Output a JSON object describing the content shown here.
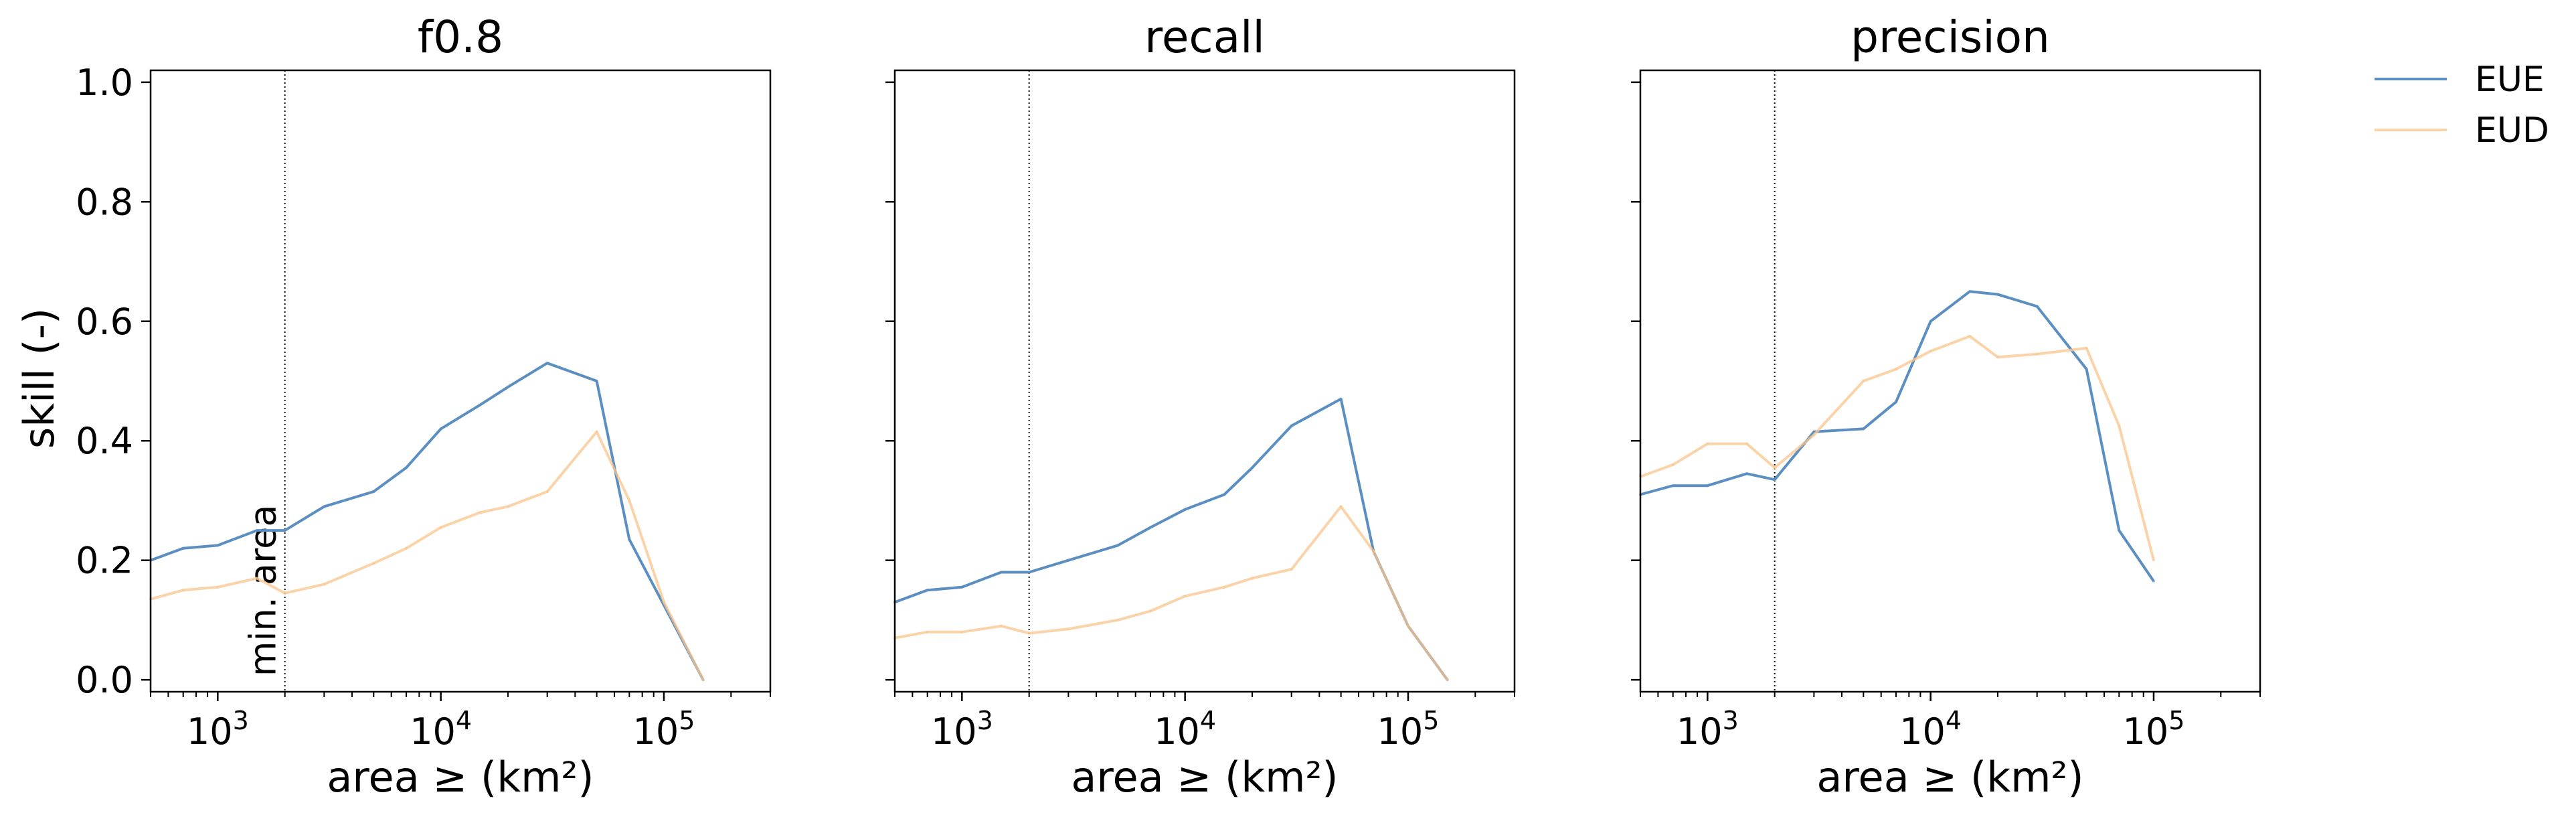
{
  "chart_data": {
    "type": "line",
    "ylabel": "skill (-)",
    "ylim": [
      -0.02,
      1.02
    ],
    "yticks": [
      0.0,
      0.2,
      0.4,
      0.6,
      0.8,
      1.0
    ],
    "ytick_labels": [
      "0.0",
      "0.2",
      "0.4",
      "0.6",
      "0.8",
      "1.0"
    ],
    "xscale": "log",
    "xlim": [
      500,
      300000
    ],
    "xticks": [
      1000,
      10000,
      100000
    ],
    "xtick_labels": [
      {
        "base": "10",
        "exp": "3"
      },
      {
        "base": "10",
        "exp": "4"
      },
      {
        "base": "10",
        "exp": "5"
      }
    ],
    "xlabel": "area ≥ (km²)",
    "min_area": 2000,
    "min_area_label": "min. area",
    "legend_position": "outside upper right",
    "series_styles": [
      {
        "name": "EUE",
        "color": "#5b8ec1",
        "opacity": 1.0
      },
      {
        "name": "EUD",
        "color": "#f9c48c",
        "opacity": 0.75
      }
    ],
    "panels": [
      {
        "title": "f0.8",
        "series": [
          {
            "name": "EUE",
            "x": [
              500,
              700,
              1000,
              1500,
              2000,
              3000,
              5000,
              7000,
              10000,
              15000,
              20000,
              30000,
              50000,
              70000,
              150000
            ],
            "y": [
              0.2,
              0.22,
              0.225,
              0.25,
              0.25,
              0.29,
              0.315,
              0.355,
              0.42,
              0.46,
              0.49,
              0.53,
              0.5,
              0.235,
              0.0
            ]
          },
          {
            "name": "EUD",
            "x": [
              500,
              700,
              1000,
              1500,
              2000,
              3000,
              5000,
              7000,
              10000,
              15000,
              20000,
              30000,
              50000,
              70000,
              100000,
              150000
            ],
            "y": [
              0.135,
              0.15,
              0.155,
              0.17,
              0.145,
              0.16,
              0.195,
              0.22,
              0.255,
              0.28,
              0.29,
              0.315,
              0.415,
              0.3,
              0.13,
              0.0
            ]
          }
        ]
      },
      {
        "title": "recall",
        "series": [
          {
            "name": "EUE",
            "x": [
              500,
              700,
              1000,
              1500,
              2000,
              3000,
              5000,
              7000,
              10000,
              15000,
              20000,
              30000,
              50000,
              70000,
              100000,
              150000
            ],
            "y": [
              0.13,
              0.15,
              0.155,
              0.18,
              0.18,
              0.2,
              0.225,
              0.255,
              0.285,
              0.31,
              0.355,
              0.425,
              0.47,
              0.215,
              0.09,
              0.0
            ]
          },
          {
            "name": "EUD",
            "x": [
              500,
              700,
              1000,
              1500,
              2000,
              3000,
              5000,
              7000,
              10000,
              15000,
              20000,
              30000,
              50000,
              70000,
              100000,
              150000
            ],
            "y": [
              0.07,
              0.08,
              0.08,
              0.09,
              0.078,
              0.085,
              0.1,
              0.115,
              0.14,
              0.155,
              0.17,
              0.185,
              0.29,
              0.215,
              0.09,
              0.0
            ]
          }
        ]
      },
      {
        "title": "precision",
        "series": [
          {
            "name": "EUE",
            "x": [
              500,
              700,
              1000,
              1500,
              2000,
              3000,
              5000,
              7000,
              10000,
              15000,
              20000,
              30000,
              50000,
              70000,
              100000
            ],
            "y": [
              0.31,
              0.325,
              0.325,
              0.345,
              0.335,
              0.415,
              0.42,
              0.465,
              0.6,
              0.65,
              0.645,
              0.625,
              0.52,
              0.25,
              0.165
            ]
          },
          {
            "name": "EUD",
            "x": [
              500,
              700,
              1000,
              1500,
              2000,
              3000,
              5000,
              7000,
              10000,
              15000,
              20000,
              30000,
              50000,
              70000,
              100000
            ],
            "y": [
              0.34,
              0.36,
              0.395,
              0.395,
              0.355,
              0.41,
              0.5,
              0.52,
              0.55,
              0.575,
              0.54,
              0.545,
              0.555,
              0.425,
              0.2
            ]
          }
        ]
      }
    ]
  }
}
